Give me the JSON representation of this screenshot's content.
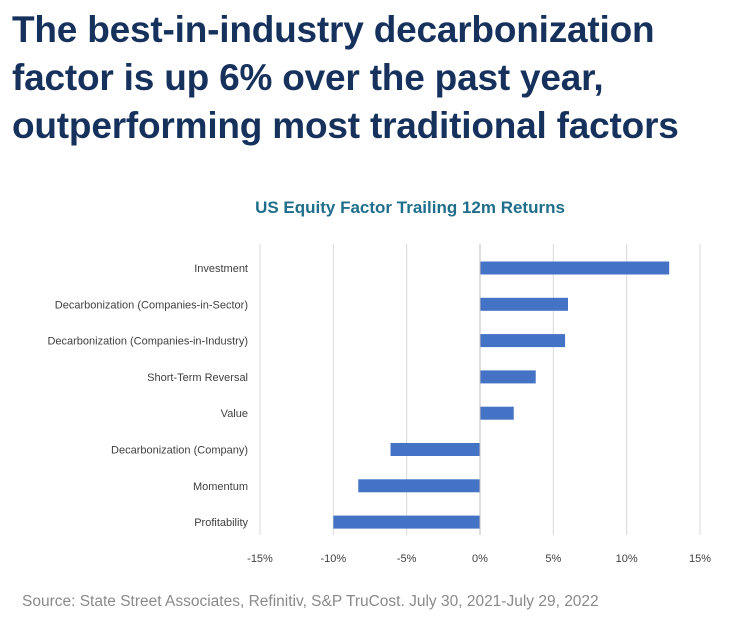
{
  "headline": {
    "line1": "The best-in-industry decarbonization",
    "line2": "factor is up 6% over the past year,",
    "line3": "outperforming most traditional factors"
  },
  "source": "Source: State Street Associates, Refinitiv, S&P TruCost.  July 30, 2021-July 29, 2022",
  "colors": {
    "headline": "#15315c",
    "chart_title": "#1f6e8c",
    "bar": "#4472c4",
    "gridline": "#d9d9d9",
    "axis_text": "#404040",
    "source": "#8a8a8a"
  },
  "chart_data": {
    "type": "bar",
    "orientation": "horizontal",
    "title": "US Equity Factor Trailing 12m Returns",
    "categories": [
      "Investment",
      "Decarbonization (Companies-in-Sector)",
      "Decarbonization (Companies-in-Industry)",
      "Short-Term Reversal",
      "Value",
      "Decarbonization (Company)",
      "Momentum",
      "Profitability"
    ],
    "values": [
      12.9,
      6.0,
      5.8,
      3.8,
      2.3,
      -6.1,
      -8.3,
      -10.0
    ],
    "xlim": [
      -15,
      15
    ],
    "x_ticks": [
      -15,
      -10,
      -5,
      0,
      5,
      10,
      15
    ],
    "x_tick_labels": [
      "-15%",
      "-10%",
      "-5%",
      "0%",
      "5%",
      "10%",
      "15%"
    ],
    "grid": "vertical",
    "legend": "none"
  }
}
